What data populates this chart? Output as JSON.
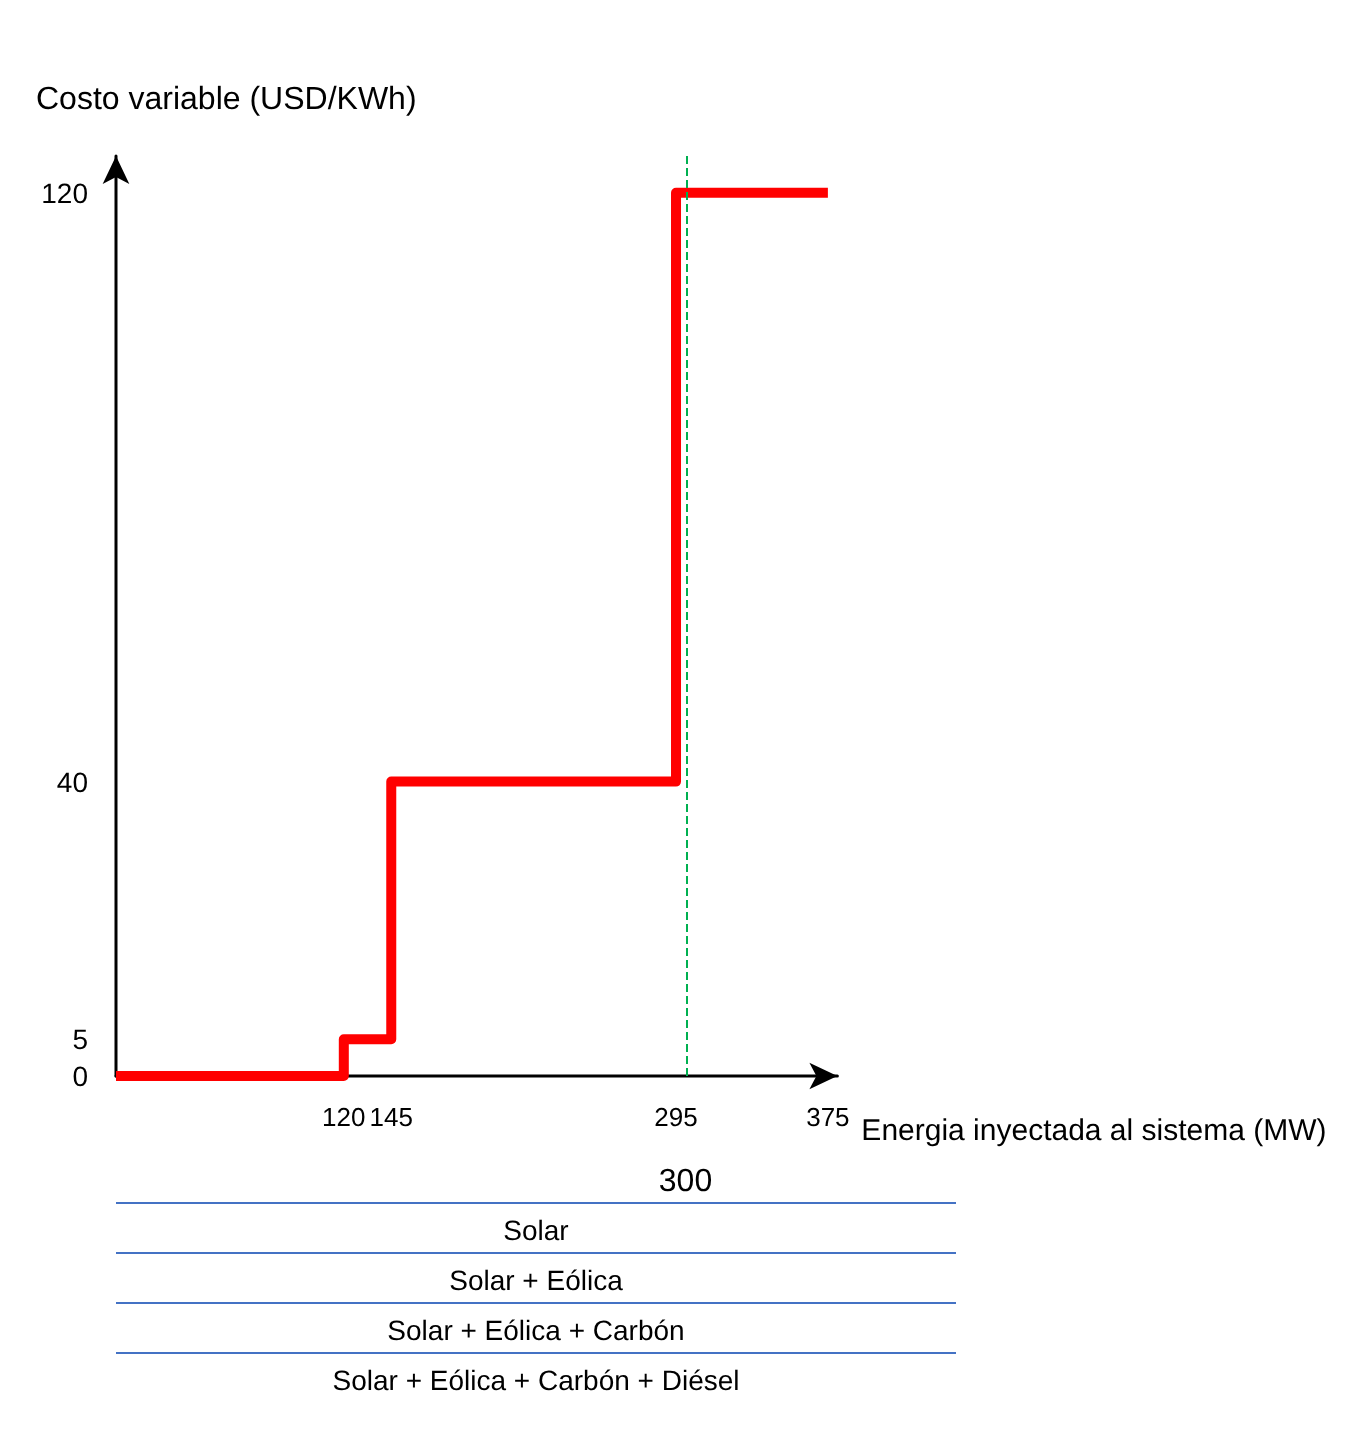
{
  "chart_data": {
    "type": "step",
    "ylabel": "Costo variable (USD/KWh)",
    "xlabel": "Energia inyectada al sistema (MW)",
    "x": [
      0,
      120,
      145,
      295,
      375
    ],
    "series": [
      {
        "color": "#ff0000",
        "values": [
          0,
          5,
          40,
          120,
          120
        ]
      }
    ],
    "xlim": [
      0,
      380
    ],
    "xticks": [
      120,
      145,
      295,
      375
    ],
    "ylim": [
      0,
      125
    ],
    "yticks": [
      0,
      5,
      40,
      120
    ],
    "ref_lines": [
      {
        "axis": "x",
        "value": 300,
        "label": "300",
        "color": "#00b050",
        "line_style": "dashed"
      }
    ],
    "grid": false,
    "marker": "none",
    "line_style": "solid",
    "annotations": [
      "Solar",
      "Solar + Eólica",
      "Solar + Eólica + Carbón",
      "Solar + Eólica + Carbón + Diésel"
    ]
  }
}
